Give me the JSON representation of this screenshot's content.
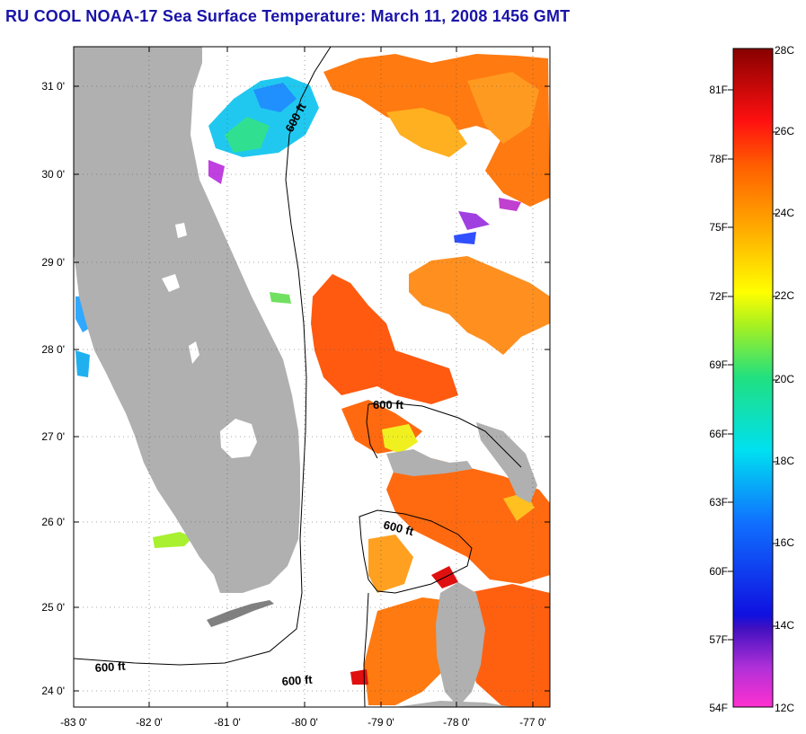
{
  "title": "RU COOL  NOAA-17  Sea Surface Temperature:  March 11, 2008 1456 GMT",
  "map": {
    "lat_labels": [
      "31 0'",
      "30 0'",
      "29 0'",
      "28 0'",
      "27 0'",
      "26 0'",
      "25 0'",
      "24 0'"
    ],
    "lon_labels": [
      "-83 0'",
      "-82 0'",
      "-81 0'",
      "-80 0'",
      "-79 0'",
      "-78 0'",
      "-77 0'"
    ],
    "contour_labels": [
      "600 ft",
      "600 ft",
      "600 ft",
      "600 ft",
      "600 ft"
    ],
    "colors": {
      "land": "#b0b0b0",
      "cloud": "#ffffff",
      "grid": "#555555"
    }
  },
  "colorbar": {
    "fahrenheit_labels": [
      "81F",
      "78F",
      "75F",
      "72F",
      "69F",
      "66F",
      "63F",
      "60F",
      "57F",
      "54F"
    ],
    "celsius_labels": [
      "28C",
      "26C",
      "24C",
      "22C",
      "20C",
      "18C",
      "16C",
      "14C",
      "12C"
    ],
    "range_celsius": [
      12,
      28
    ]
  }
}
